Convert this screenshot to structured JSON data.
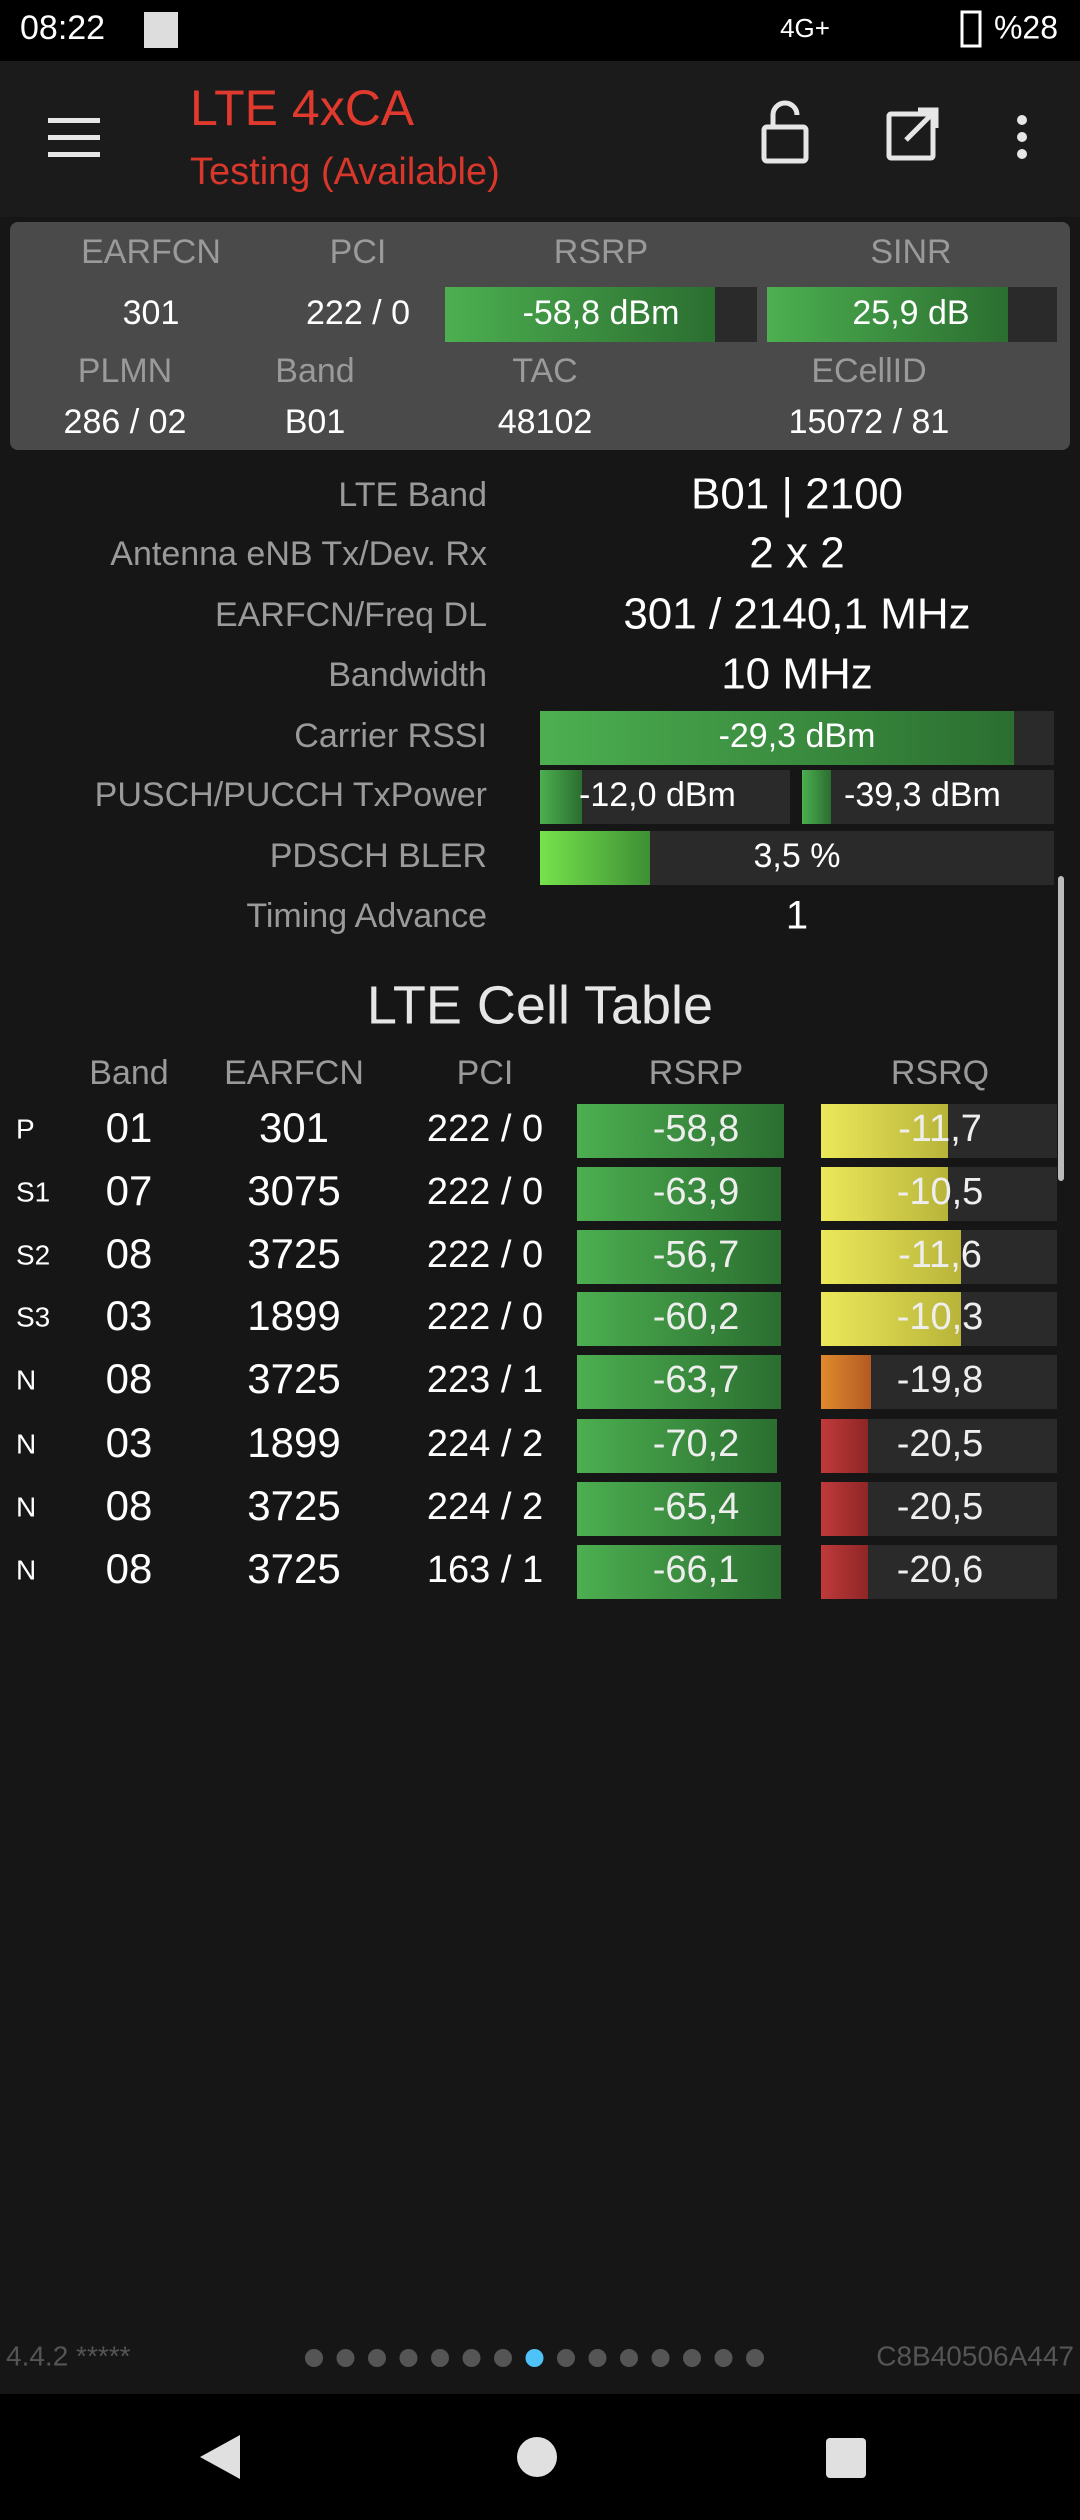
{
  "status_bar": {
    "time": "08:22",
    "network": "4G+",
    "battery": "%28"
  },
  "app_bar": {
    "title": "LTE 4xCA",
    "subtitle": "Testing (Available)"
  },
  "serving_cell": {
    "headers": [
      "EARFCN",
      "PCI",
      "RSRP",
      "SINR"
    ],
    "values": [
      "301",
      "222 / 0",
      "-58,8 dBm",
      "25,9 dB"
    ],
    "headers2": [
      "PLMN",
      "Band",
      "TAC",
      "ECellID"
    ],
    "values2": [
      "286 / 02",
      "B01",
      "48102",
      "15072 / 81"
    ]
  },
  "details": [
    {
      "label": "LTE Band",
      "value": "B01 | 2100"
    },
    {
      "label": "Antenna eNB Tx/Dev. Rx",
      "value": "2 x 2"
    },
    {
      "label": "EARFCN/Freq DL",
      "value": "301 / 2140,1 MHz"
    },
    {
      "label": "Bandwidth",
      "value": "10 MHz"
    },
    {
      "label": "Carrier RSSI",
      "value": "-29,3 dBm"
    },
    {
      "label": "PUSCH/PUCCH TxPower",
      "value": [
        "-12,0 dBm",
        "-39,3 dBm"
      ]
    },
    {
      "label": "PDSCH BLER",
      "value": "3,5 %"
    },
    {
      "label": "Timing Advance",
      "value": "1"
    }
  ],
  "cell_table": {
    "title": "LTE Cell Table",
    "columns": [
      "Band",
      "EARFCN",
      "PCI",
      "RSRP",
      "RSRQ"
    ],
    "rows": [
      [
        "P",
        "01",
        "301",
        "222 / 0",
        "-58,8",
        "-11,7"
      ],
      [
        "S1",
        "07",
        "3075",
        "222 / 0",
        "-63,9",
        "-10,5"
      ],
      [
        "S2",
        "08",
        "3725",
        "222 / 0",
        "-56,7",
        "-11,6"
      ],
      [
        "S3",
        "03",
        "1899",
        "222 / 0",
        "-60,2",
        "-10,3"
      ],
      [
        "N",
        "08",
        "3725",
        "223 / 1",
        "-63,7",
        "-19,8"
      ],
      [
        "N",
        "03",
        "1899",
        "224 / 2",
        "-70,2",
        "-20,5"
      ],
      [
        "N",
        "08",
        "3725",
        "224 / 2",
        "-65,4",
        "-20,5"
      ],
      [
        "N",
        "08",
        "3725",
        "163 / 1",
        "-66,1",
        "-20,6"
      ]
    ]
  },
  "footer": {
    "version": "4.4.2 *****",
    "device_id": "C8B40506A447"
  }
}
